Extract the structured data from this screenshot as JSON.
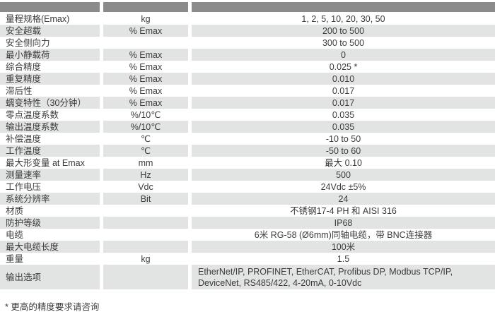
{
  "colors": {
    "header_bg": "#8b8b8b",
    "stripe_bg": "#e2e3e3",
    "text": "#3b3b3b",
    "page_bg": "#ffffff"
  },
  "table": {
    "rows": [
      {
        "label": "量程规格(Emax)",
        "unit": "kg",
        "value": "1, 2, 5, 10, 20, 30, 50"
      },
      {
        "label": "安全超载",
        "unit": "% Emax",
        "value": "200 to 500"
      },
      {
        "label": "安全侧向力",
        "unit": "",
        "value": "300 to 500"
      },
      {
        "label": "最小静载荷",
        "unit": "% Emax",
        "value": "0"
      },
      {
        "label": "综合精度",
        "unit": "% Emax",
        "value": "0.025 *"
      },
      {
        "label": "重复精度",
        "unit": "% Emax",
        "value": "0.010"
      },
      {
        "label": "滞后性",
        "unit": "% Emax",
        "value": "0.017"
      },
      {
        "label": "蠕变特性（30分钟）",
        "unit": "% Emax",
        "value": "0.017"
      },
      {
        "label": "零点温度系数",
        "unit": "%/10℃",
        "value": "0.035"
      },
      {
        "label": "输出温度系数",
        "unit": "%/10℃",
        "value": "0.035"
      },
      {
        "label": "补偿温度",
        "unit": "℃",
        "value": "-10 to 50"
      },
      {
        "label": "工作温度",
        "unit": "℃",
        "value": "-50 to 60"
      },
      {
        "label": "最大形变量 at Emax",
        "unit": "mm",
        "value": "最大 0.10"
      },
      {
        "label": "测量速率",
        "unit": "Hz",
        "value": "500"
      },
      {
        "label": "工作电压",
        "unit": "Vdc",
        "value": "24Vdc ±5%"
      },
      {
        "label": "系统分辨率",
        "unit": "Bit",
        "value": "24"
      },
      {
        "label": "材质",
        "unit": "",
        "value": "不锈钢17-4 PH 和 AISI 316"
      },
      {
        "label": "防护等级",
        "unit": "",
        "value": "IP68"
      },
      {
        "label": "电缆",
        "unit": "",
        "value": "6米 RG-58 (Ø6mm)同轴电缆，带 BNC连接器"
      },
      {
        "label": "最大电缆长度",
        "unit": "",
        "value": "100米"
      },
      {
        "label": "重量",
        "unit": "kg",
        "value": "1.5"
      },
      {
        "label": "输出选项",
        "unit": "",
        "value": "EtherNet/IP, PROFINET, EtherCAT, Profibus DP, Modbus TCP/IP,\nDeviceNet, RS485/422, 4-20mA, 0-10Vdc"
      }
    ]
  },
  "footnote": "* 更高的精度要求请咨询"
}
